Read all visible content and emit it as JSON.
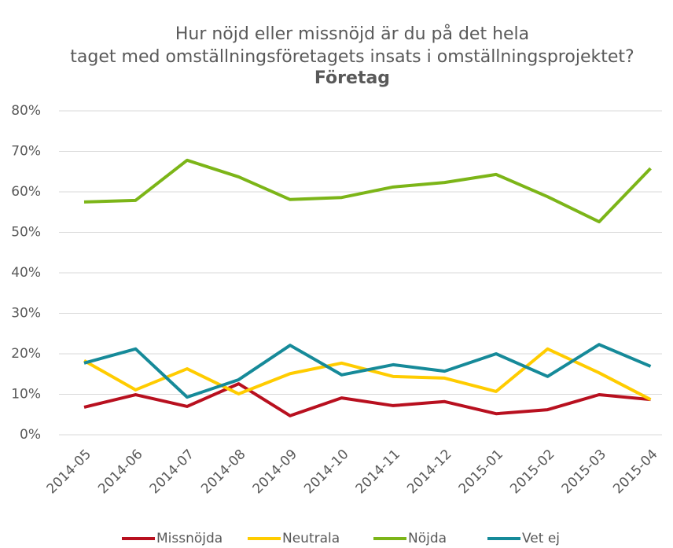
{
  "chart_data": {
    "type": "line",
    "title": "Hur nöjd eller missnöjd är du på det hela taget med omställningsföretagets insats i omställningsprojektet?",
    "subtitle": "Företag",
    "categories": [
      "2014-05",
      "2014-06",
      "2014-07",
      "2014-08",
      "2014-09",
      "2014-10",
      "2014-11",
      "2014-12",
      "2015-01",
      "2015-02",
      "2015-03",
      "2015-04"
    ],
    "series": [
      {
        "name": "Missnöjda",
        "color": "#b8101f",
        "values": [
          6.8,
          9.9,
          7.0,
          12.6,
          4.7,
          9.1,
          7.2,
          8.2,
          5.2,
          6.2,
          9.9,
          8.7
        ]
      },
      {
        "name": "Neutrala",
        "color": "#ffcc00",
        "values": [
          18.3,
          11.1,
          16.3,
          10.1,
          15.1,
          17.7,
          14.4,
          14.0,
          10.7,
          21.2,
          15.3,
          8.7
        ]
      },
      {
        "name": "Nöjda",
        "color": "#7cb518",
        "values": [
          57.5,
          57.9,
          67.8,
          63.7,
          58.1,
          58.6,
          61.2,
          62.3,
          64.3,
          58.8,
          52.6,
          65.8
        ]
      },
      {
        "name": "Vet ej",
        "color": "#168a99",
        "values": [
          17.7,
          21.2,
          9.3,
          13.6,
          22.1,
          14.8,
          17.3,
          15.7,
          20.0,
          14.4,
          22.3,
          16.9
        ]
      }
    ],
    "ylim": [
      0,
      80
    ],
    "yticks": [
      {
        "value": 0,
        "label": "0%"
      },
      {
        "value": 10,
        "label": "10%"
      },
      {
        "value": 20,
        "label": "20%"
      },
      {
        "value": 30,
        "label": "30%"
      },
      {
        "value": 40,
        "label": "40%"
      },
      {
        "value": 50,
        "label": "50%"
      },
      {
        "value": 60,
        "label": "60%"
      },
      {
        "value": 70,
        "label": "70%"
      },
      {
        "value": 80,
        "label": "80%"
      }
    ],
    "grid": true,
    "legend": "bottom"
  }
}
